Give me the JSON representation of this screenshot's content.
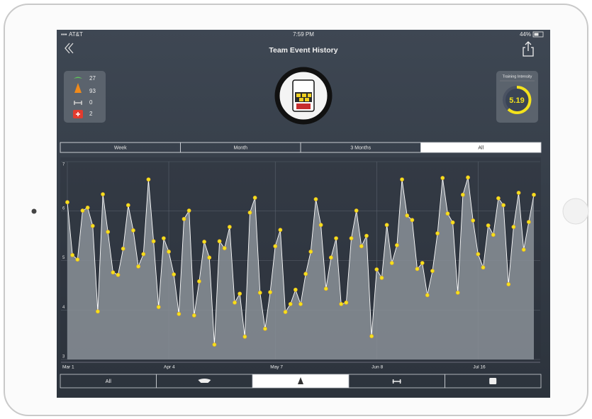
{
  "status_bar": {
    "carrier": "AT&T",
    "time": "7:59 PM",
    "battery": "44%"
  },
  "header": {
    "title": "Team Event History"
  },
  "stats": [
    27,
    93,
    0,
    2
  ],
  "training_intensity": {
    "label": "Training Intensity",
    "value": 5.19
  },
  "range_tabs": {
    "items": [
      "Week",
      "Month",
      "3 Months",
      "All"
    ],
    "selected_index": 3
  },
  "bottom_tabs": {
    "items": [
      "All"
    ],
    "selected_index": 2
  },
  "chart_data": {
    "type": "line",
    "categories": [
      "Mar 1",
      null,
      null,
      null,
      null,
      null,
      null,
      null,
      null,
      null,
      null,
      null,
      null,
      null,
      null,
      null,
      null,
      null,
      null,
      null,
      "Apr 4",
      null,
      null,
      null,
      null,
      null,
      null,
      null,
      null,
      null,
      null,
      null,
      null,
      null,
      null,
      null,
      null,
      null,
      null,
      null,
      null,
      "May 7",
      null,
      null,
      null,
      null,
      null,
      null,
      null,
      null,
      null,
      null,
      null,
      null,
      null,
      null,
      null,
      null,
      null,
      null,
      null,
      "Jun 8",
      null,
      null,
      null,
      null,
      null,
      null,
      null,
      null,
      null,
      null,
      null,
      null,
      null,
      null,
      null,
      null,
      null,
      null,
      null,
      "Jul 16",
      null,
      null,
      null,
      null,
      null,
      null,
      null,
      null,
      null,
      null,
      null
    ],
    "values": [
      6.18,
      5.11,
      5.02,
      6.01,
      6.07,
      5.7,
      3.97,
      6.34,
      5.58,
      4.76,
      4.71,
      5.24,
      6.12,
      5.61,
      4.88,
      5.13,
      6.64,
      5.39,
      4.06,
      5.45,
      5.18,
      4.72,
      3.92,
      5.84,
      6.01,
      3.89,
      4.58,
      5.38,
      5.06,
      3.3,
      5.39,
      5.25,
      5.68,
      4.15,
      4.33,
      3.46,
      5.97,
      6.27,
      4.35,
      3.62,
      4.36,
      5.29,
      5.62,
      3.96,
      4.12,
      4.41,
      4.12,
      4.73,
      5.18,
      6.24,
      5.72,
      4.43,
      5.06,
      5.45,
      4.12,
      4.15,
      5.45,
      6.01,
      5.29,
      5.5,
      3.47,
      4.82,
      4.65,
      5.72,
      4.95,
      5.31,
      6.64,
      5.91,
      5.82,
      4.83,
      4.95,
      4.3,
      4.79,
      5.55,
      6.67,
      5.95,
      5.77,
      4.35,
      6.33,
      6.68,
      5.81,
      5.13,
      4.86,
      5.71,
      5.52,
      6.26,
      6.12,
      4.52,
      5.68,
      6.37,
      5.22,
      5.78,
      6.33
    ],
    "ylim": [
      3,
      7
    ],
    "yticks": [
      3,
      4,
      5,
      6,
      7
    ],
    "grid": true,
    "color": "#ffffff",
    "marker_color": "#f3e21c",
    "area_color": "#8a9098"
  }
}
